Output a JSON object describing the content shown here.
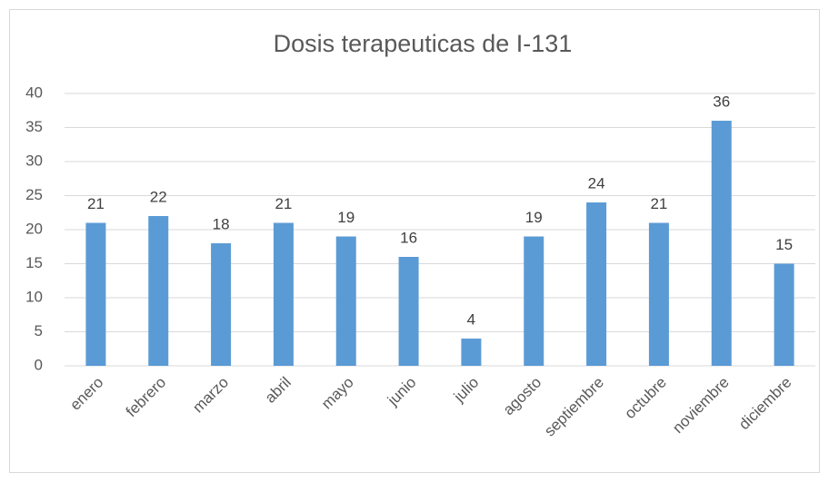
{
  "chart_data": {
    "type": "bar",
    "title": "Dosis terapeuticas de I-131",
    "categories": [
      "enero",
      "febrero",
      "marzo",
      "abril",
      "mayo",
      "junio",
      "julio",
      "agosto",
      "septiembre",
      "octubre",
      "noviembre",
      "diciembre"
    ],
    "values": [
      21,
      22,
      18,
      21,
      19,
      16,
      4,
      19,
      24,
      21,
      36,
      15
    ],
    "color": "#5b9bd5",
    "ylim": [
      0,
      40
    ],
    "yticks": [
      0,
      5,
      10,
      15,
      20,
      25,
      30,
      35,
      40
    ],
    "grid": true
  }
}
